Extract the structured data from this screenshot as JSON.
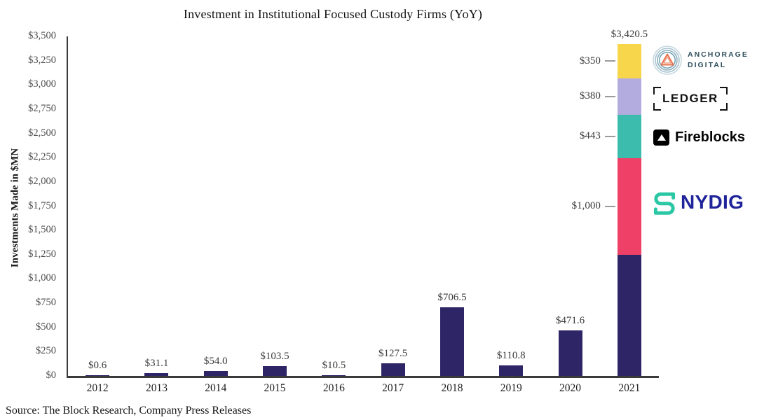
{
  "source_note": "Source: The Block Research, Company Press Releases",
  "chart_data": {
    "type": "bar",
    "title": "Investment in Institutional Focused Custody Firms (YoY)",
    "ylabel": "Investments Made in $MN",
    "ylim": [
      0,
      3500
    ],
    "grid": false,
    "ytick_labels": [
      "$3,500",
      "$3,250",
      "$3,000",
      "$2,750",
      "$2,500",
      "$2,250",
      "$2,000",
      "$1,750",
      "$1,500",
      "$1,250",
      "$1,000",
      "$750",
      "$500",
      "$250",
      "$0"
    ],
    "categories": [
      "2012",
      "2013",
      "2014",
      "2015",
      "2016",
      "2017",
      "2018",
      "2019",
      "2020",
      "2021"
    ],
    "values": [
      0.6,
      31.1,
      54.0,
      103.5,
      10.5,
      127.5,
      706.5,
      110.8,
      471.6,
      3420.5
    ],
    "bar_value_labels": [
      "$0.6",
      "$31.1",
      "$54.0",
      "$103.5",
      "$10.5",
      "$127.5",
      "$706.5",
      "$110.8",
      "$471.6",
      "$3,420.5"
    ],
    "bar_color": "#2E2566",
    "stacked_bar": {
      "category": "2021",
      "total_label": "$3,420.5",
      "segments_top_to_bottom": [
        {
          "name": "Anchorage Digital",
          "label": "$350",
          "value": 350,
          "color": "#F8D64B"
        },
        {
          "name": "Ledger",
          "label": "$380",
          "value": 380,
          "color": "#B3ACDE"
        },
        {
          "name": "Fireblocks",
          "label": "$443",
          "value": 443,
          "color": "#3BBCAD"
        },
        {
          "name": "NYDIG",
          "label": "$1,000",
          "value": 1000,
          "color": "#EF4168"
        },
        {
          "name": "remainder",
          "label": "",
          "value": 1247.5,
          "color": "#2E2566"
        }
      ]
    }
  },
  "logos": {
    "anchorage": {
      "line1": "ANCHORAGE",
      "line2": "DIGITAL",
      "text_color": "#2E4E5C",
      "triangle_color": "#E8714D"
    },
    "ledger": {
      "text": "LEDGER",
      "color": "#131313"
    },
    "fireblocks": {
      "text": "Fireblocks",
      "color": "#050505"
    },
    "nydig": {
      "text": "NYDIG",
      "text_color": "#20249A",
      "glyph_color": "#2AC7A4"
    }
  }
}
